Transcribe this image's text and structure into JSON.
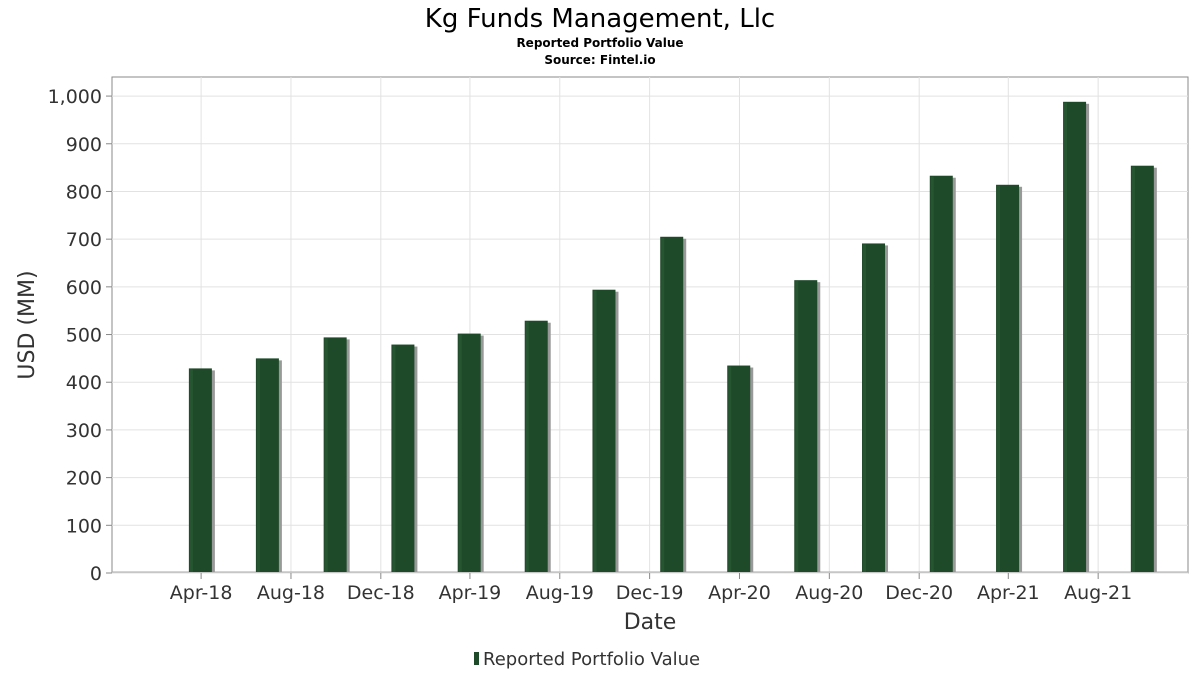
{
  "header": {
    "title": "Kg Funds Management, Llc",
    "subtitle": "Reported Portfolio Value",
    "source": "Source: Fintel.io"
  },
  "chart_data": {
    "type": "bar",
    "xlabel": "Date",
    "ylabel": "USD (MM)",
    "ylim": [
      0,
      1040
    ],
    "yticks": [
      0,
      100,
      200,
      300,
      400,
      500,
      600,
      700,
      800,
      900,
      1000
    ],
    "ytick_labels": [
      "0",
      "100",
      "200",
      "300",
      "400",
      "500",
      "600",
      "700",
      "800",
      "900",
      "1,000"
    ],
    "xticks": [
      "Apr-18",
      "Aug-18",
      "Dec-18",
      "Apr-19",
      "Aug-19",
      "Dec-19",
      "Apr-20",
      "Aug-20",
      "Dec-20",
      "Apr-21",
      "Aug-21"
    ],
    "grid": true,
    "legend_position": "bottom-center",
    "series": [
      {
        "name": "Reported Portfolio Value",
        "color": "#1f4a2a",
        "points": [
          {
            "x": "2018-03-31",
            "y": 429
          },
          {
            "x": "2018-06-30",
            "y": 450
          },
          {
            "x": "2018-09-30",
            "y": 494
          },
          {
            "x": "2018-12-31",
            "y": 479
          },
          {
            "x": "2019-03-31",
            "y": 502
          },
          {
            "x": "2019-06-30",
            "y": 529
          },
          {
            "x": "2019-09-30",
            "y": 594
          },
          {
            "x": "2019-12-31",
            "y": 705
          },
          {
            "x": "2020-03-31",
            "y": 435
          },
          {
            "x": "2020-06-30",
            "y": 614
          },
          {
            "x": "2020-09-30",
            "y": 691
          },
          {
            "x": "2020-12-31",
            "y": 833
          },
          {
            "x": "2021-03-31",
            "y": 814
          },
          {
            "x": "2021-06-30",
            "y": 988
          },
          {
            "x": "2021-09-30",
            "y": 854
          }
        ]
      }
    ]
  }
}
